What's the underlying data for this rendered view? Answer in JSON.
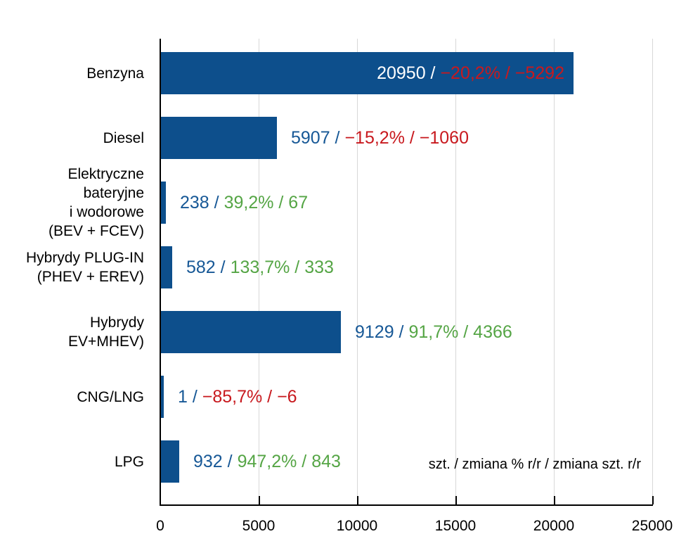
{
  "chart_data": {
    "type": "bar",
    "orientation": "horizontal",
    "title": "",
    "xlabel": "",
    "ylabel": "",
    "xlim": [
      0,
      25000
    ],
    "xticks": [
      0,
      5000,
      10000,
      15000,
      20000,
      25000
    ],
    "grid": "vertical-light-gray",
    "legend_note": "szt. / zmiana % r/r / zmiana szt. r/r",
    "categories": [
      "Benzyna",
      "Diesel",
      "Elektryczne bateryjne i wodorowe (BEV + FCEV)",
      "Hybrydy PLUG-IN (PHEV + EREV)",
      "Hybrydy EV+MHEV)",
      "CNG/LNG",
      "LPG"
    ],
    "values": [
      20950,
      5907,
      238,
      582,
      9129,
      1,
      932
    ],
    "rows": [
      {
        "label_lines": [
          "Benzyna"
        ],
        "count": "20950",
        "change": "−20,2% / −5292",
        "trend": "negative",
        "label_inside_bar": true
      },
      {
        "label_lines": [
          "Diesel"
        ],
        "count": "5907",
        "change": "−15,2% / −1060",
        "trend": "negative",
        "label_inside_bar": false
      },
      {
        "label_lines": [
          "Elektryczne",
          "bateryjne",
          "i wodorowe",
          "(BEV + FCEV)"
        ],
        "count": "238",
        "change": "39,2% / 67",
        "trend": "positive",
        "label_inside_bar": false
      },
      {
        "label_lines": [
          "Hybrydy PLUG-IN",
          "(PHEV + EREV)"
        ],
        "count": "582",
        "change": "133,7% / 333",
        "trend": "positive",
        "label_inside_bar": false
      },
      {
        "label_lines": [
          "Hybrydy",
          "EV+MHEV)"
        ],
        "count": "9129",
        "change": "91,7% / 4366",
        "trend": "positive",
        "label_inside_bar": false
      },
      {
        "label_lines": [
          "CNG/LNG"
        ],
        "count": "1",
        "change": "−85,7% / −6",
        "trend": "negative",
        "label_inside_bar": false
      },
      {
        "label_lines": [
          "LPG"
        ],
        "count": "932",
        "change": "947,2% / 843",
        "trend": "positive",
        "label_inside_bar": false
      }
    ],
    "colors": {
      "bar": "#0d4f8c",
      "count_text": "#175896",
      "count_text_inside": "#ffffff",
      "negative": "#c8191e",
      "positive": "#55a545",
      "grid": "#d8d8d8",
      "axis": "#000000"
    }
  }
}
